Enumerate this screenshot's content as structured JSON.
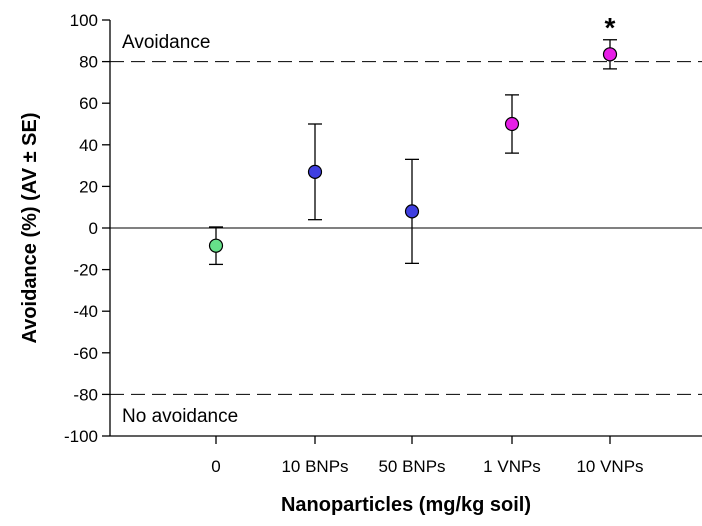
{
  "chart_data": {
    "type": "scatter",
    "xlabel": "Nanoparticles (mg/kg soil)",
    "ylabel": "Avoidance (%) (AV ± SE)",
    "categories": [
      "0",
      "10 BNPs",
      "50 BNPs",
      "1 VNPs",
      "10 VNPs"
    ],
    "values": [
      -8.5,
      27,
      8,
      50,
      83.5
    ],
    "error": [
      9,
      23,
      25,
      14,
      7
    ],
    "point_colors": [
      "#66e08a",
      "#3f3fe0",
      "#3f3fe0",
      "#e61ee6",
      "#e61ee6"
    ],
    "significance": [
      "",
      "",
      "",
      "",
      "*"
    ],
    "ylim": [
      -100,
      100
    ],
    "yticks": [
      -100,
      -80,
      -60,
      -40,
      -20,
      0,
      20,
      40,
      60,
      80,
      100
    ],
    "reference_lines": [
      {
        "value": 80,
        "style": "dashed"
      },
      {
        "value": -80,
        "style": "dashed"
      },
      {
        "value": 0,
        "style": "solid"
      }
    ],
    "annotations": {
      "top": "Avoidance",
      "bottom": "No avoidance"
    },
    "grid": false
  }
}
